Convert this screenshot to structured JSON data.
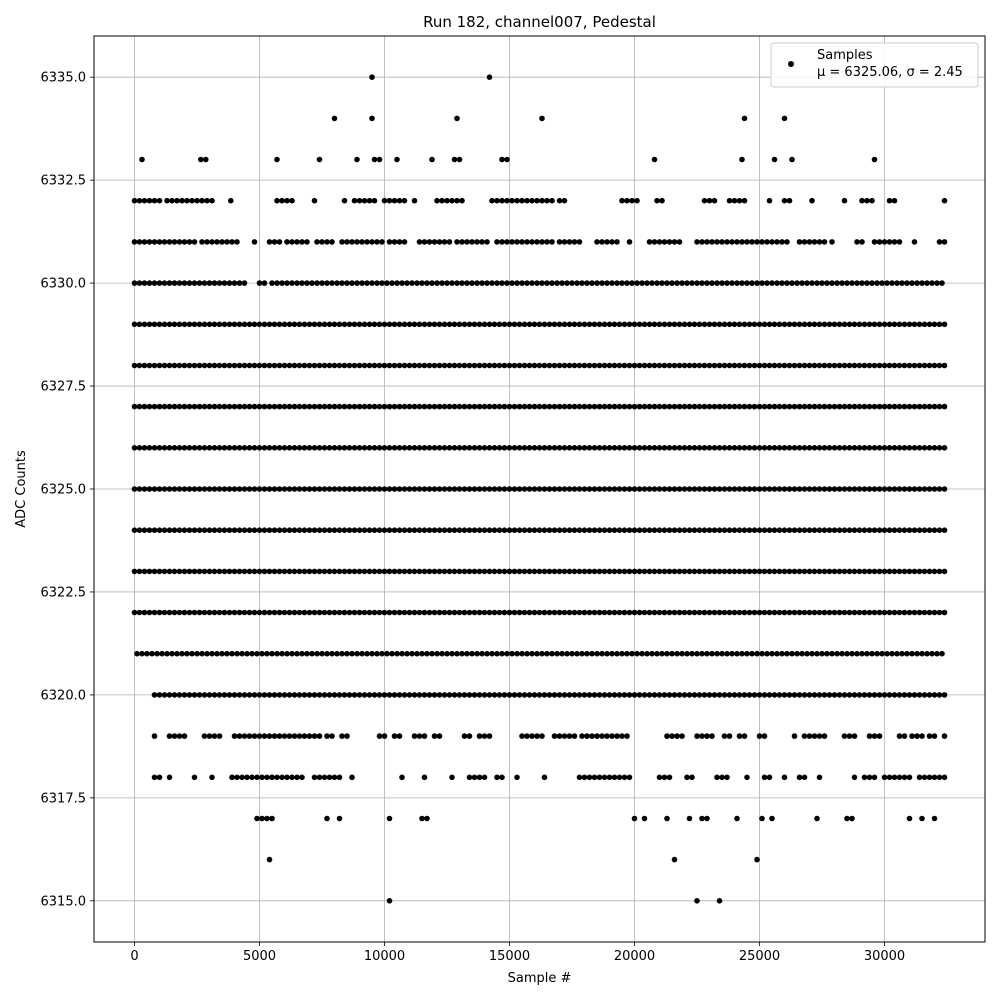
{
  "chart_data": {
    "type": "scatter",
    "title": "Run 182, channel007, Pedestal",
    "xlabel": "Sample #",
    "ylabel": "ADC Counts",
    "xlim": [
      -1620,
      34020
    ],
    "ylim": [
      6314.0,
      6336.0
    ],
    "x_ticks": [
      0,
      5000,
      10000,
      15000,
      20000,
      25000,
      30000
    ],
    "x_tick_labels": [
      "0",
      "5000",
      "10000",
      "15000",
      "20000",
      "25000",
      "30000"
    ],
    "y_ticks": [
      6315.0,
      6317.5,
      6320.0,
      6322.5,
      6325.0,
      6327.5,
      6330.0,
      6332.5,
      6335.0
    ],
    "y_tick_labels": [
      "6315.0",
      "6317.5",
      "6320.0",
      "6322.5",
      "6325.0",
      "6327.5",
      "6330.0",
      "6332.5",
      "6335.0"
    ],
    "grid": true,
    "legend_position": "top-right",
    "legend": {
      "label": "Samples",
      "stats_text": "μ = 6325.06, σ = 2.45"
    },
    "series": [
      {
        "name": "Samples",
        "color": "#000000",
        "x_range": [
          0,
          32400
        ],
        "level_segments": {
          "6335": [
            [
              9500,
              9500
            ],
            [
              14200,
              14200
            ]
          ],
          "6334": [
            [
              8000,
              8000
            ],
            [
              9500,
              9500
            ],
            [
              12900,
              12900
            ],
            [
              16300,
              16300
            ],
            [
              24400,
              24400
            ],
            [
              26000,
              26000
            ]
          ],
          "6333": [
            [
              300,
              450
            ],
            [
              2650,
              2900
            ],
            [
              5700,
              5700
            ],
            [
              7400,
              7400
            ],
            [
              8900,
              8900
            ],
            [
              9600,
              9850
            ],
            [
              10500,
              10500
            ],
            [
              11900,
              11900
            ],
            [
              12800,
              13050
            ],
            [
              14700,
              15000
            ],
            [
              20800,
              20800
            ],
            [
              24300,
              24450
            ],
            [
              25600,
              25600
            ],
            [
              26300,
              26300
            ],
            [
              29600,
              29600
            ]
          ],
          "6332": [
            [
              0,
              1050
            ],
            [
              1300,
              2700
            ],
            [
              2900,
              3200
            ],
            [
              3850,
              3850
            ],
            [
              5700,
              6300
            ],
            [
              7200,
              7200
            ],
            [
              8400,
              8400
            ],
            [
              8800,
              9700
            ],
            [
              10000,
              10800
            ],
            [
              11200,
              11200
            ],
            [
              12100,
              13100
            ],
            [
              14300,
              16800
            ],
            [
              17000,
              17200
            ],
            [
              19500,
              20100
            ],
            [
              20900,
              21100
            ],
            [
              22800,
              23200
            ],
            [
              23800,
              24500
            ],
            [
              25400,
              25400
            ],
            [
              26000,
              26200
            ],
            [
              27100,
              27100
            ],
            [
              28400,
              28400
            ],
            [
              29100,
              29500
            ],
            [
              30200,
              30400
            ],
            [
              32400,
              32400
            ]
          ],
          "6331": [
            [
              0,
              2500
            ],
            [
              2700,
              4100
            ],
            [
              4800,
              4800
            ],
            [
              5400,
              5800
            ],
            [
              6100,
              7000
            ],
            [
              7300,
              8000
            ],
            [
              8300,
              9900
            ],
            [
              10200,
              10800
            ],
            [
              11400,
              12700
            ],
            [
              12900,
              14100
            ],
            [
              14500,
              16700
            ],
            [
              17000,
              17900
            ],
            [
              18500,
              19400
            ],
            [
              19800,
              19800
            ],
            [
              20600,
              21800
            ],
            [
              22500,
              24000
            ],
            [
              24100,
              26100
            ],
            [
              26600,
              27600
            ],
            [
              27900,
              28000
            ],
            [
              28900,
              29200
            ],
            [
              29600,
              30600
            ],
            [
              31200,
              31200
            ],
            [
              32200,
              32400
            ]
          ],
          "6330": [
            [
              0,
              4200
            ],
            [
              4400,
              4400
            ],
            [
              5000,
              5200
            ],
            [
              5500,
              32400
            ]
          ],
          "6329": [
            [
              0,
              32400
            ]
          ],
          "6328": [
            [
              0,
              32400
            ]
          ],
          "6327": [
            [
              0,
              32400
            ]
          ],
          "6326": [
            [
              0,
              32400
            ]
          ],
          "6325": [
            [
              0,
              32400
            ]
          ],
          "6324": [
            [
              0,
              32400
            ]
          ],
          "6323": [
            [
              0,
              32400
            ]
          ],
          "6322": [
            [
              0,
              32400
            ]
          ],
          "6321": [
            [
              100,
              32400
            ]
          ],
          "6320": [
            [
              800,
              32400
            ]
          ],
          "6319": [
            [
              800,
              800
            ],
            [
              1400,
              2100
            ],
            [
              2800,
              3400
            ],
            [
              4000,
              5200
            ],
            [
              5400,
              7400
            ],
            [
              7700,
              8000
            ],
            [
              8300,
              8600
            ],
            [
              9800,
              10000
            ],
            [
              10400,
              10600
            ],
            [
              11200,
              11700
            ],
            [
              12000,
              12300
            ],
            [
              13200,
              13500
            ],
            [
              13800,
              14200
            ],
            [
              15500,
              16300
            ],
            [
              16800,
              17600
            ],
            [
              17900,
              19800
            ],
            [
              21300,
              21900
            ],
            [
              22500,
              23200
            ],
            [
              23600,
              23800
            ],
            [
              24200,
              24400
            ],
            [
              25000,
              25200
            ],
            [
              26400,
              26500
            ],
            [
              26800,
              27600
            ],
            [
              28400,
              28900
            ],
            [
              29400,
              29800
            ],
            [
              30600,
              30800
            ],
            [
              31100,
              31500
            ],
            [
              31800,
              32100
            ],
            [
              32400,
              32400
            ]
          ],
          "6318": [
            [
              800,
              1100
            ],
            [
              1400,
              1400
            ],
            [
              2400,
              2400
            ],
            [
              3100,
              3100
            ],
            [
              3900,
              6700
            ],
            [
              7200,
              8200
            ],
            [
              8700,
              8700
            ],
            [
              10700,
              10700
            ],
            [
              11600,
              11700
            ],
            [
              12700,
              12700
            ],
            [
              13400,
              14100
            ],
            [
              14500,
              14800
            ],
            [
              15300,
              15300
            ],
            [
              16400,
              16400
            ],
            [
              17800,
              19800
            ],
            [
              21000,
              21400
            ],
            [
              22100,
              22300
            ],
            [
              23300,
              23700
            ],
            [
              24500,
              24500
            ],
            [
              25200,
              25500
            ],
            [
              26000,
              26000
            ],
            [
              26600,
              26900
            ],
            [
              27400,
              27400
            ],
            [
              28800,
              28800
            ],
            [
              29200,
              29600
            ],
            [
              30000,
              31000
            ],
            [
              31400,
              32400
            ]
          ],
          "6317": [
            [
              4900,
              5500
            ],
            [
              7700,
              7700
            ],
            [
              8200,
              8200
            ],
            [
              10200,
              10200
            ],
            [
              11500,
              11800
            ],
            [
              20000,
              20000
            ],
            [
              20400,
              20400
            ],
            [
              21300,
              21400
            ],
            [
              22200,
              22300
            ],
            [
              22700,
              22900
            ],
            [
              24100,
              24200
            ],
            [
              25100,
              25100
            ],
            [
              25500,
              25500
            ],
            [
              27300,
              27300
            ],
            [
              28500,
              28700
            ],
            [
              31000,
              31100
            ],
            [
              31500,
              31600
            ],
            [
              32000,
              32100
            ]
          ],
          "6316": [
            [
              5400,
              5400
            ],
            [
              21600,
              21600
            ],
            [
              24900,
              24900
            ]
          ],
          "6315": [
            [
              10200,
              10200
            ],
            [
              22500,
              22500
            ],
            [
              23400,
              23400
            ]
          ]
        }
      }
    ]
  }
}
